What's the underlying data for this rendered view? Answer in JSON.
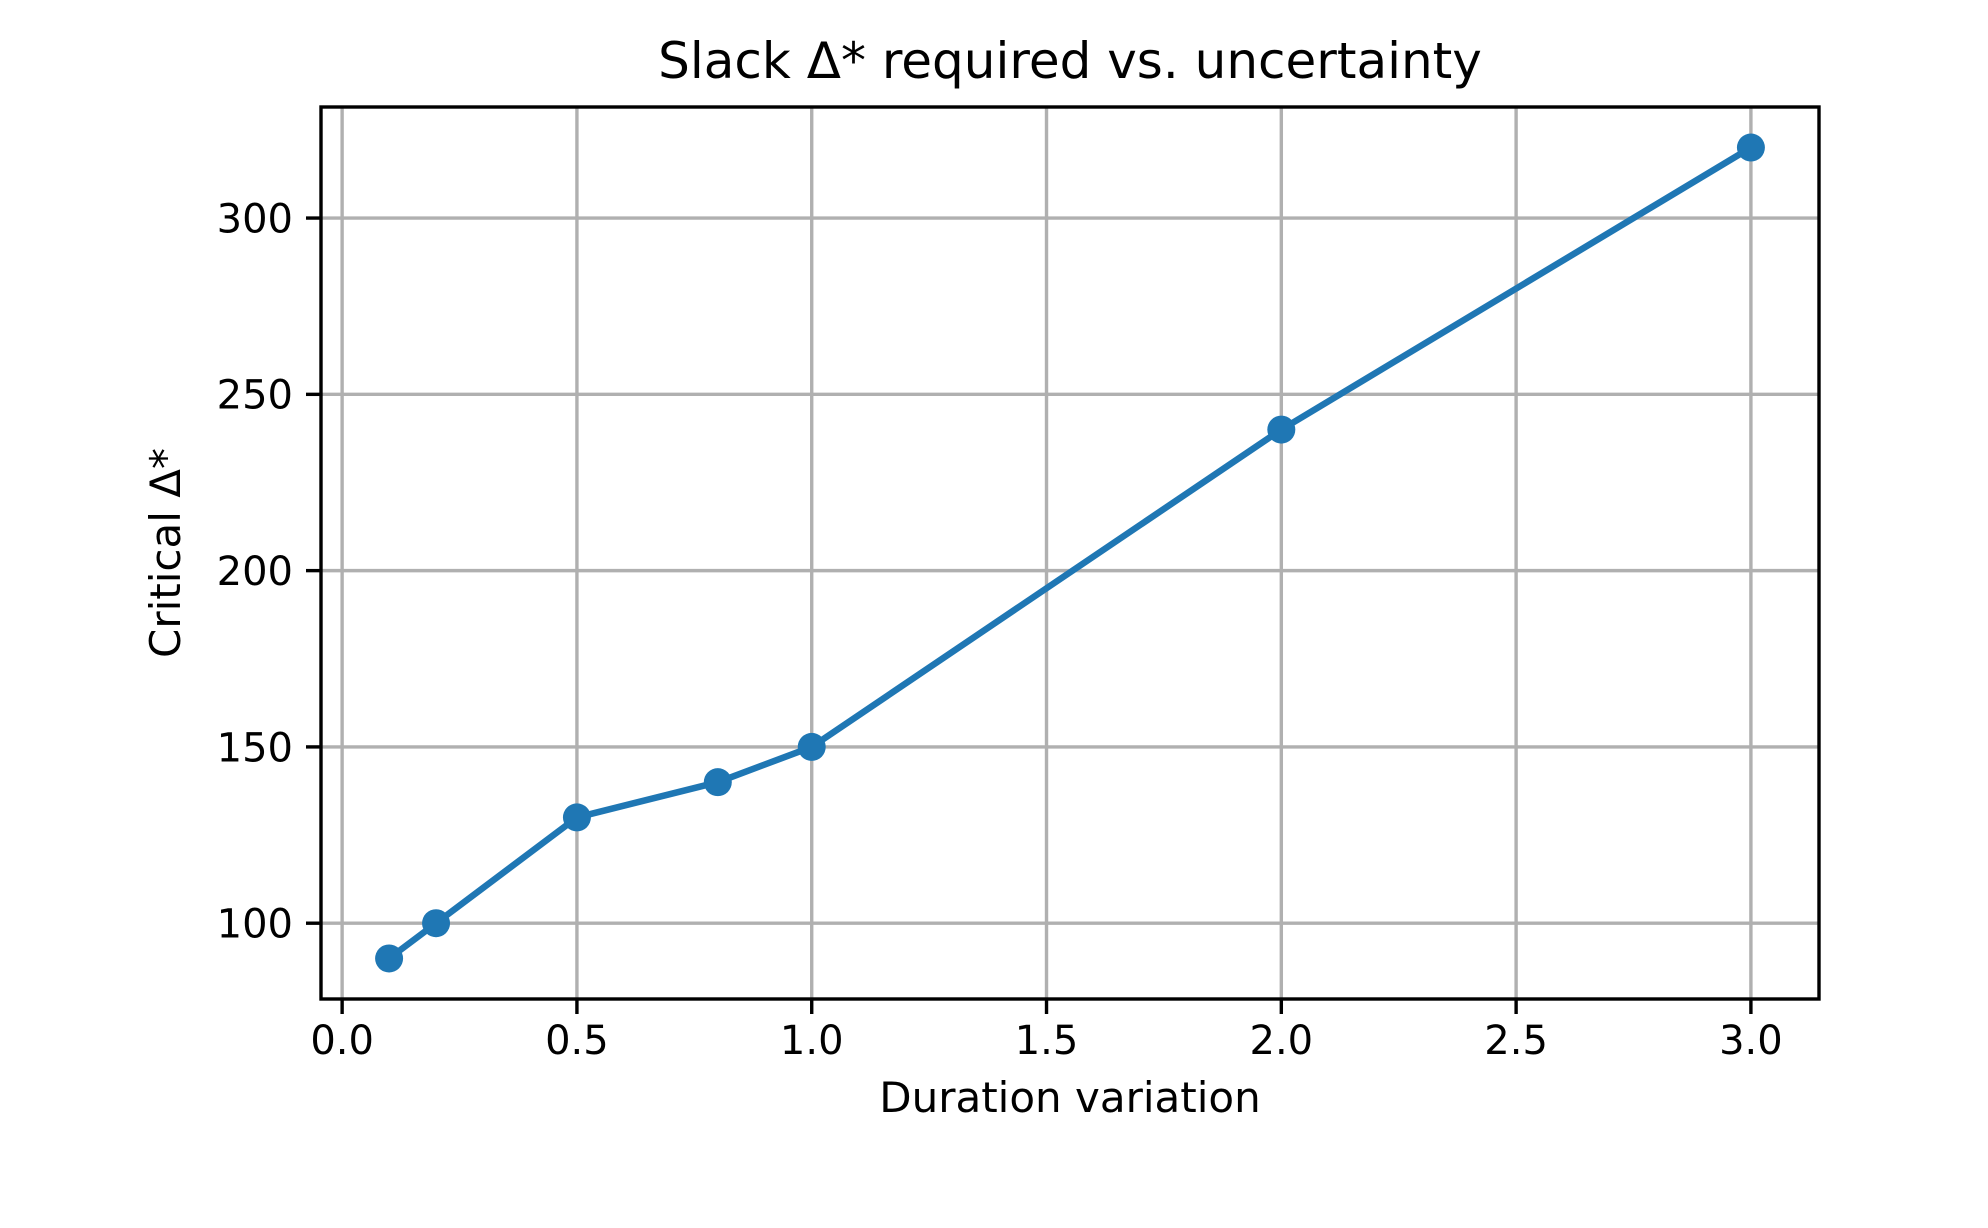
{
  "figure": {
    "background": "#ffffff"
  },
  "chart_data": {
    "type": "line",
    "title": "Slack Δ* required vs. uncertainty",
    "xlabel": "Duration variation",
    "ylabel": "Critical Δ*",
    "x": [
      0.1,
      0.2,
      0.5,
      0.8,
      1.0,
      2.0,
      3.0
    ],
    "y": [
      90,
      100,
      130,
      140,
      150,
      240,
      320
    ],
    "xlim": [
      -0.045,
      3.145
    ],
    "ylim": [
      78.5,
      331.5
    ],
    "xticks": {
      "values": [
        0.0,
        0.5,
        1.0,
        1.5,
        2.0,
        2.5,
        3.0
      ],
      "labels": [
        "0.0",
        "0.5",
        "1.0",
        "1.5",
        "2.0",
        "2.5",
        "3.0"
      ]
    },
    "yticks": {
      "values": [
        100,
        150,
        200,
        250,
        300
      ],
      "labels": [
        "100",
        "150",
        "200",
        "250",
        "300"
      ]
    },
    "grid": true,
    "legend": false,
    "marker": "circle",
    "colors": {
      "line": "#1f77b4",
      "grid": "#b0b0b0",
      "spine": "#000000",
      "text": "#000000"
    }
  }
}
